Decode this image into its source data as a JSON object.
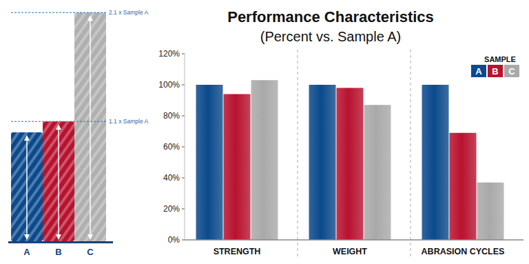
{
  "chart_data": {
    "type": "bar",
    "title": "Performance Characteristics",
    "subtitle": "(Percent vs. Sample A)",
    "categories": [
      "STRENGTH",
      "WEIGHT",
      "ABRASION CYCLES"
    ],
    "series": [
      {
        "name": "A",
        "color": "#0b4a8c",
        "values": [
          100,
          100,
          100
        ]
      },
      {
        "name": "B",
        "color": "#b8122f",
        "values": [
          94,
          98,
          69
        ]
      },
      {
        "name": "C",
        "color": "#a9a9a9",
        "values": [
          103,
          87,
          37
        ]
      }
    ],
    "ylim": [
      0,
      120
    ],
    "yticks": [
      {
        "value": 0,
        "label": "0%"
      },
      {
        "value": 20,
        "label": "20%"
      },
      {
        "value": 40,
        "label": "40%"
      },
      {
        "value": 60,
        "label": "60%"
      },
      {
        "value": 80,
        "label": "80%"
      },
      {
        "value": 100,
        "label": "100%"
      },
      {
        "value": 120,
        "label": "120%"
      }
    ],
    "grid": false,
    "legend": "top-right",
    "legend_title": "SAMPLE"
  },
  "illustration": {
    "labels": [
      "A",
      "B",
      "C"
    ],
    "colors": [
      "#0b4a8c",
      "#b8122f",
      "#b0b0b0"
    ],
    "lengths": [
      1,
      1.1,
      2.1
    ],
    "annotations": [
      {
        "label": "1.1 x Sample A",
        "value": 1.1
      },
      {
        "label": "2.1 x Sample A",
        "value": 2.1
      }
    ]
  }
}
